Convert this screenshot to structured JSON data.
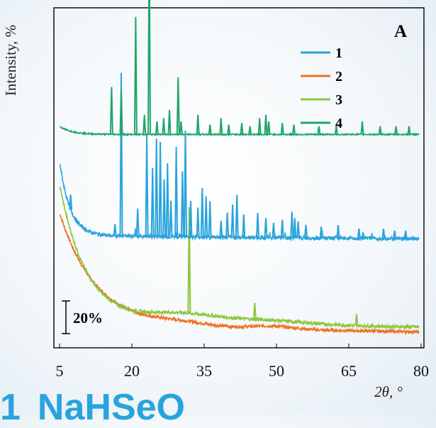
{
  "title_fragment": {
    "number": "1",
    "formula": "NaHSeO"
  },
  "chart_data": {
    "type": "line",
    "panel_label": "A",
    "ylabel": "Intensity, %",
    "xlabel": "2θ, °",
    "xlim": [
      5,
      80
    ],
    "xticks": [
      5,
      20,
      35,
      50,
      65,
      80
    ],
    "scale_bar": {
      "label": "20%",
      "percent": 20
    },
    "grid": false,
    "legend_position": "top-right",
    "series": [
      {
        "name": "1",
        "color": "#29a3dc",
        "baseline_percent": 60,
        "peaks": [
          [
            7.3,
            9
          ],
          [
            16.5,
            7
          ],
          [
            17.8,
            100
          ],
          [
            21.2,
            17
          ],
          [
            23.1,
            63
          ],
          [
            24.3,
            42
          ],
          [
            25.1,
            60
          ],
          [
            25.9,
            58
          ],
          [
            26.7,
            35
          ],
          [
            27.4,
            45
          ],
          [
            28.1,
            22
          ],
          [
            29.2,
            55
          ],
          [
            30.5,
            40
          ],
          [
            31.1,
            65
          ],
          [
            32.2,
            22
          ],
          [
            33.7,
            18
          ],
          [
            34.6,
            30
          ],
          [
            35.4,
            25
          ],
          [
            36.2,
            22
          ],
          [
            38.5,
            10
          ],
          [
            39.8,
            15
          ],
          [
            40.9,
            20
          ],
          [
            41.8,
            26
          ],
          [
            43.2,
            14
          ],
          [
            46.1,
            15
          ],
          [
            47.8,
            12
          ],
          [
            49.4,
            9
          ],
          [
            51.2,
            11
          ],
          [
            53.2,
            16
          ],
          [
            53.8,
            12
          ],
          [
            54.5,
            10
          ],
          [
            56.1,
            8
          ],
          [
            59.3,
            7
          ],
          [
            62.8,
            8
          ],
          [
            67.1,
            6
          ],
          [
            72.2,
            6
          ],
          [
            74.5,
            5
          ],
          [
            76.8,
            5
          ]
        ]
      },
      {
        "name": "2",
        "color": "#f07021",
        "baseline_percent": 0,
        "peaks": []
      },
      {
        "name": "3",
        "color": "#8dc63f",
        "baseline_percent": 0,
        "peaks": [
          [
            31.9,
            65
          ],
          [
            45.5,
            10
          ],
          [
            66.6,
            7
          ]
        ]
      },
      {
        "name": "4",
        "color": "#1ea669",
        "baseline_percent": 122,
        "peaks": [
          [
            15.8,
            29
          ],
          [
            17.8,
            27
          ],
          [
            20.8,
            72
          ],
          [
            22.6,
            12
          ],
          [
            23.6,
            118
          ],
          [
            25.2,
            8
          ],
          [
            26.6,
            10
          ],
          [
            27.8,
            15
          ],
          [
            29.6,
            35
          ],
          [
            30.2,
            8
          ],
          [
            33.7,
            12
          ],
          [
            36.2,
            6
          ],
          [
            38.5,
            10
          ],
          [
            40.1,
            6
          ],
          [
            42.8,
            7
          ],
          [
            44.5,
            5
          ],
          [
            46.5,
            10
          ],
          [
            47.8,
            12
          ],
          [
            48.4,
            8
          ],
          [
            51.2,
            7
          ],
          [
            53.6,
            6
          ],
          [
            58.8,
            5
          ],
          [
            62.4,
            5
          ],
          [
            67.8,
            8
          ],
          [
            71.5,
            5
          ],
          [
            74.8,
            5
          ],
          [
            77.5,
            5
          ]
        ]
      }
    ]
  }
}
